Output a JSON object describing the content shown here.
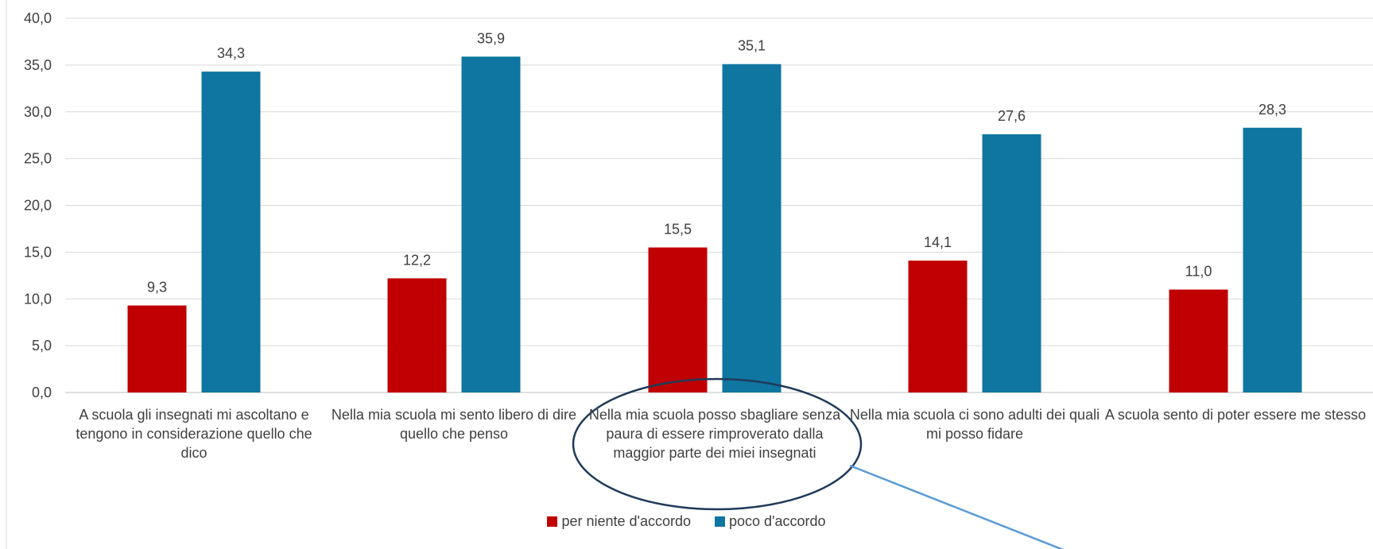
{
  "chart_data": {
    "type": "bar",
    "categories": [
      "A scuola gli insegnati mi ascoltano e tengono in considerazione quello che dico",
      "Nella mia scuola mi sento libero di dire quello che penso",
      "Nella mia scuola posso sbagliare senza paura di essere rimproverato dalla maggior parte dei miei insegnati",
      "Nella mia scuola ci sono adulti dei quali mi posso fidare",
      "A scuola sento di poter essere me stesso"
    ],
    "series": [
      {
        "name": "per niente d'accordo",
        "color": "#c00000",
        "values": [
          9.3,
          12.2,
          15.5,
          14.1,
          11.0
        ],
        "labels": [
          "9,3",
          "12,2",
          "15,5",
          "14,1",
          "11,0"
        ]
      },
      {
        "name": "poco d'accordo",
        "color": "#0e76a0",
        "values": [
          34.3,
          35.9,
          35.1,
          27.6,
          28.3
        ],
        "labels": [
          "34,3",
          "35,9",
          "35,1",
          "27,6",
          "28,3"
        ]
      }
    ],
    "ylim": [
      0,
      40
    ],
    "yticks": [
      "0,0",
      "5,0",
      "10,0",
      "15,0",
      "20,0",
      "25,0",
      "30,0",
      "35,0",
      "40,0"
    ],
    "grid": true,
    "legend": "bottom",
    "annotation": {
      "shape": "ellipse",
      "target_category_index": 2,
      "color": "#1f3a5a",
      "arrow_color": "#5b9bd5"
    }
  }
}
